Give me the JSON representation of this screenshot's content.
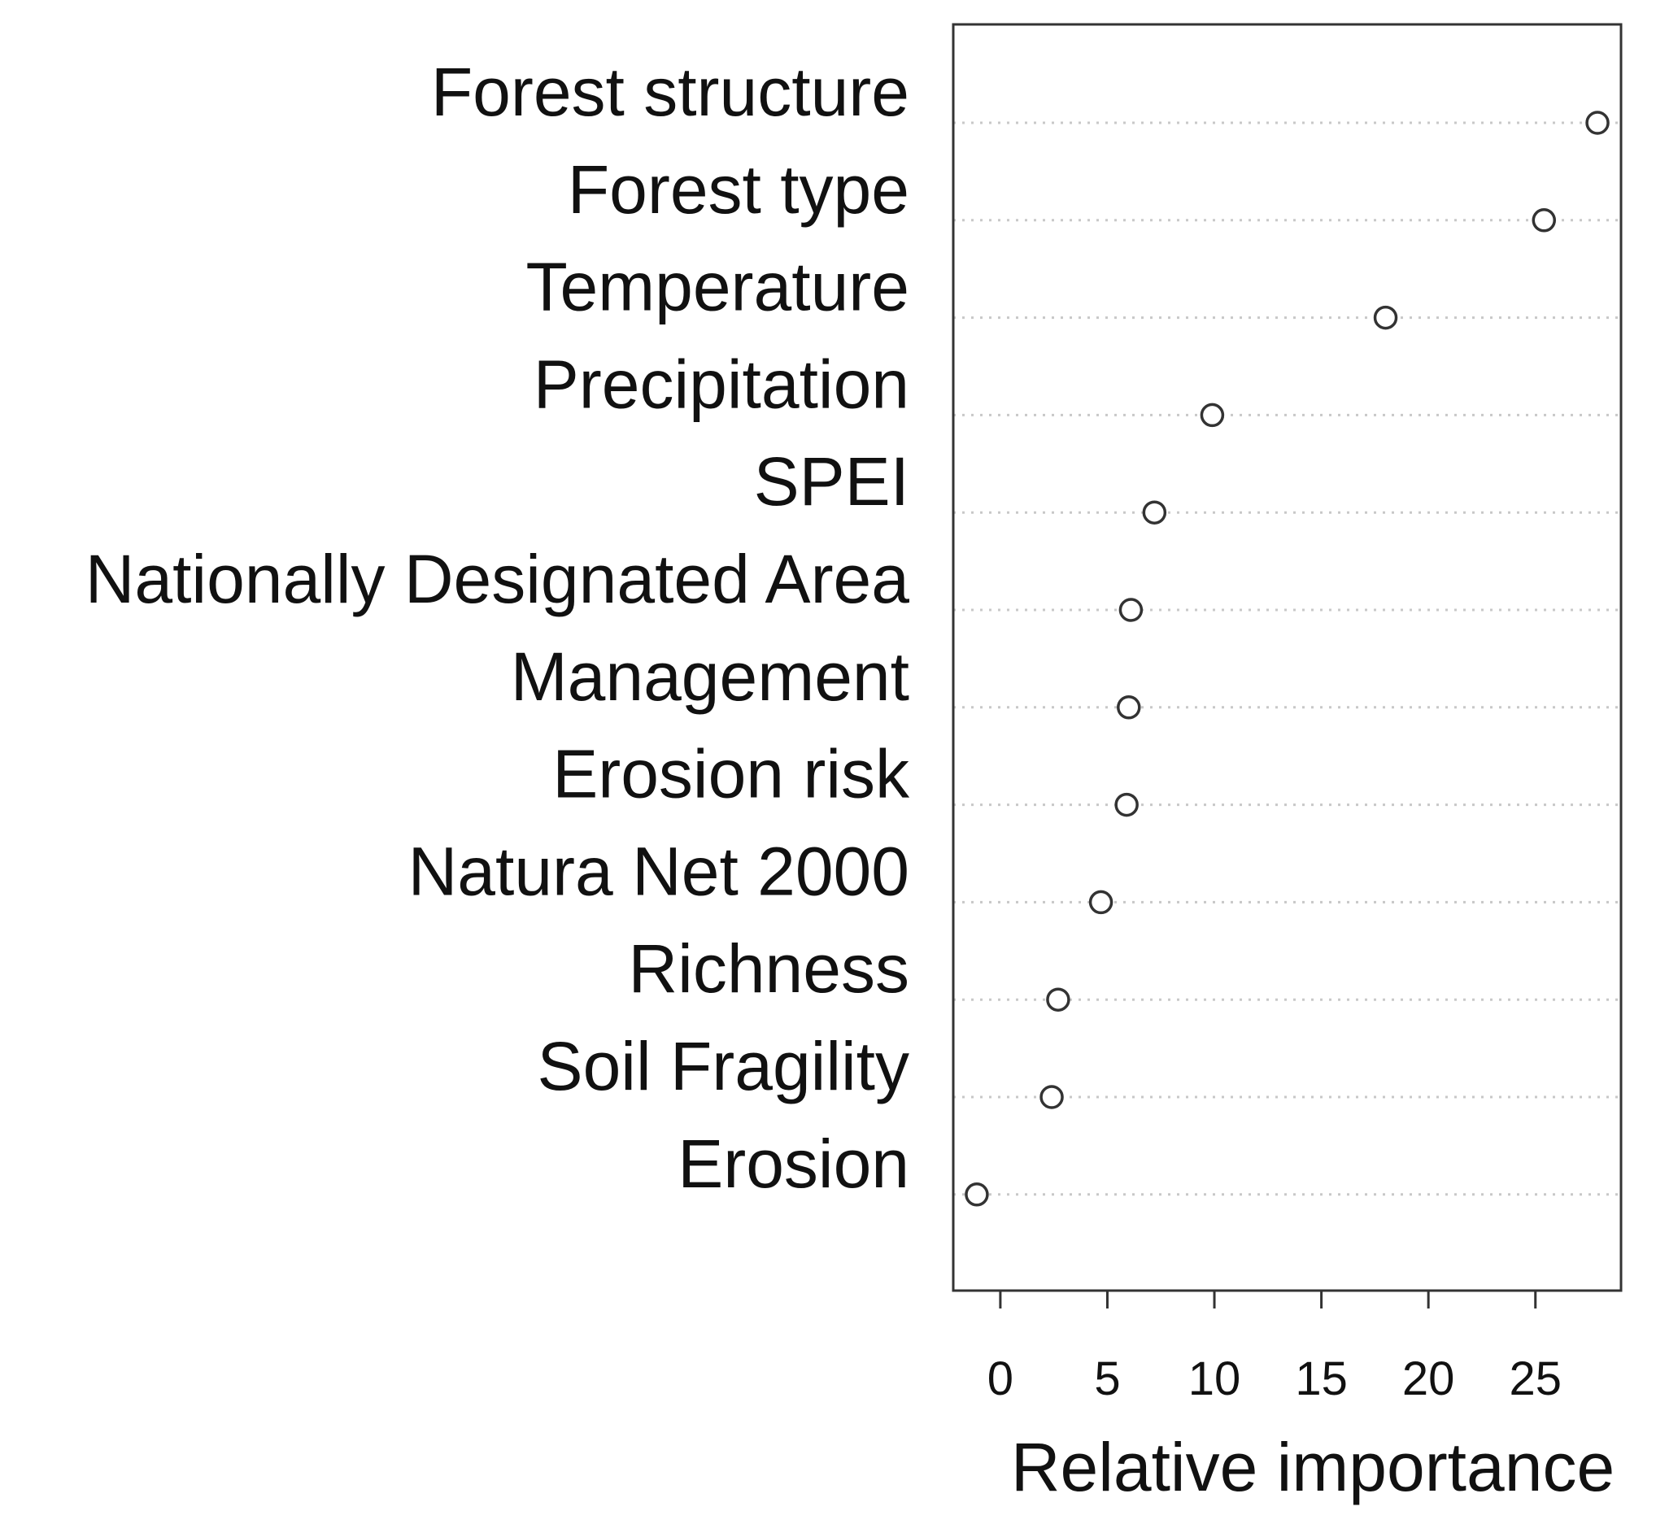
{
  "chart_data": {
    "type": "scatter",
    "title": "",
    "xlabel": "Relative importance",
    "ylabel": "",
    "xlim": [
      -2.2,
      29
    ],
    "x_ticks": [
      "0",
      "5",
      "10",
      "15",
      "20",
      "25"
    ],
    "grid": "horizontal dotted",
    "legend": "none",
    "categories": [
      "Forest structure",
      "Forest type",
      "Temperature",
      "Precipitation",
      "SPEI",
      "Nationally Designated Area",
      "Management",
      "Erosion risk",
      "Natura Net 2000",
      "Richness ",
      "Soil Fragility",
      "Erosion"
    ],
    "values": [
      27.9,
      25.4,
      18.0,
      9.9,
      7.2,
      6.1,
      6.0,
      5.9,
      4.7,
      2.7,
      2.4,
      -1.1
    ],
    "colors": {
      "axis": "#333333",
      "grid": "#c8c8c8",
      "marker_stroke": "#333333",
      "marker_fill": "#ffffff",
      "text": "#111111"
    }
  }
}
